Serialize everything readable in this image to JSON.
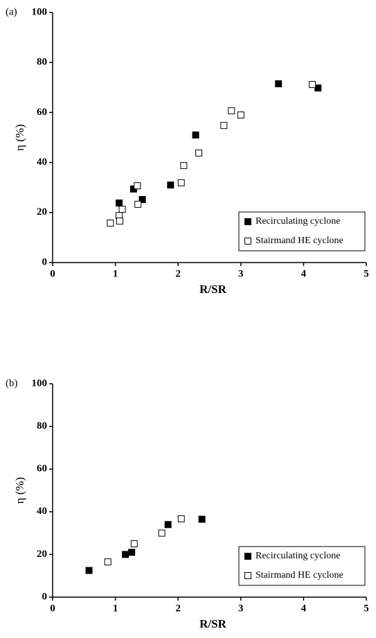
{
  "chart_data": [
    {
      "type": "scatter",
      "panel_label": "(a)",
      "xlabel": "R/SR",
      "ylabel": "η (%)",
      "xlim": [
        0,
        5
      ],
      "ylim": [
        0,
        100
      ],
      "xticks": [
        0,
        1,
        2,
        3,
        4,
        5
      ],
      "yticks": [
        0,
        20,
        40,
        60,
        80,
        100
      ],
      "legend": "lower right",
      "series": [
        {
          "name": "Recirculating cyclone",
          "color": "#000000",
          "marker": "filled",
          "x": [
            1.06,
            1.29,
            1.43,
            1.88,
            2.28,
            3.6,
            4.23
          ],
          "values": [
            23.8,
            29.4,
            25.2,
            31,
            51,
            71.5,
            69.8
          ]
        },
        {
          "name": "Stairmand HE cyclone",
          "color": "#000000",
          "marker": "open",
          "x": [
            0.92,
            1.06,
            1.07,
            1.11,
            1.35,
            1.36,
            2.05,
            2.09,
            2.33,
            2.73,
            2.85,
            3.0,
            4.14
          ],
          "values": [
            15.8,
            18.8,
            16.6,
            21.3,
            30.7,
            23.3,
            31.9,
            38.8,
            43.8,
            54.8,
            60.7,
            59,
            71.2
          ]
        }
      ]
    },
    {
      "type": "scatter",
      "panel_label": "(b)",
      "xlabel": "R/SR",
      "ylabel": "η (%)",
      "xlim": [
        0,
        5
      ],
      "ylim": [
        0,
        100
      ],
      "xticks": [
        0,
        1,
        2,
        3,
        4,
        5
      ],
      "yticks": [
        0,
        20,
        40,
        60,
        80,
        100
      ],
      "legend": "lower right",
      "series": [
        {
          "name": "Recirculating cyclone",
          "color": "#000000",
          "marker": "filled",
          "x": [
            0.58,
            1.16,
            1.26,
            1.84,
            2.38
          ],
          "values": [
            12.5,
            20,
            21,
            34,
            36.5
          ]
        },
        {
          "name": "Stairmand HE cyclone",
          "color": "#000000",
          "marker": "open",
          "x": [
            0.88,
            1.3,
            1.74,
            2.05
          ],
          "values": [
            16.5,
            25,
            30,
            36.7
          ]
        }
      ]
    }
  ]
}
